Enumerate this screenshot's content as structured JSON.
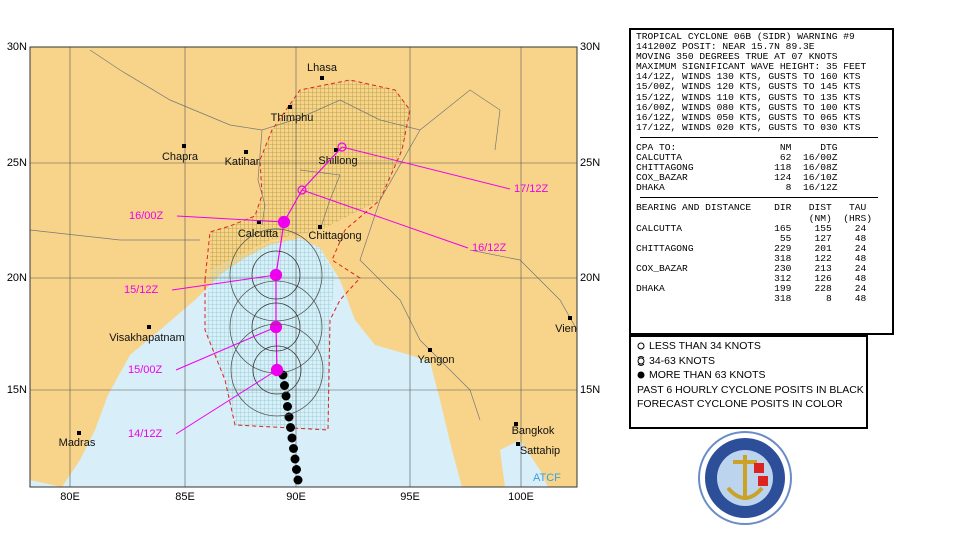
{
  "map": {
    "lat_labels": [
      "30N",
      "25N",
      "20N",
      "15N"
    ],
    "lon_labels": [
      "80E",
      "85E",
      "90E",
      "95E",
      "100E"
    ],
    "places": [
      "Lhasa",
      "Thimphu",
      "Chapra",
      "Katihar",
      "Shillong",
      "Calcutta",
      "Chittagong",
      "Visakhapatnam",
      "Yangon",
      "Madras",
      "Bangkok",
      "Sattahip",
      "Vien"
    ],
    "forecast_labels": [
      "17/12Z",
      "16/12Z",
      "16/00Z",
      "15/12Z",
      "15/00Z",
      "14/12Z"
    ],
    "credit": "ATCF"
  },
  "warning": {
    "lines": [
      "TROPICAL CYCLONE 06B (SIDR) WARNING #9",
      "141200Z POSIT: NEAR 15.7N 89.3E",
      "MOVING 350 DEGREES TRUE AT 07 KNOTS",
      "MAXIMUM SIGNIFICANT WAVE HEIGHT: 35 FEET",
      "14/12Z, WINDS 130 KTS, GUSTS TO 160 KTS",
      "15/00Z, WINDS 120 KTS, GUSTS TO 145 KTS",
      "15/12Z, WINDS 110 KTS, GUSTS TO 135 KTS",
      "16/00Z, WINDS 080 KTS, GUSTS TO 100 KTS",
      "16/12Z, WINDS 050 KTS, GUSTS TO 065 KTS",
      "17/12Z, WINDS 020 KTS, GUSTS TO 030 KTS"
    ]
  },
  "cpa": {
    "lines": [
      "CPA TO:                  NM     DTG",
      "CALCUTTA                 62  16/00Z",
      "CHITTAGONG              118  16/08Z",
      "COX_BAZAR               124  16/10Z",
      "DHAKA                     8  16/12Z"
    ]
  },
  "bearing": {
    "lines": [
      "BEARING AND DISTANCE    DIR   DIST   TAU",
      "                              (NM)  (HRS)",
      "CALCUTTA                165    155    24",
      "                         55    127    48",
      "CHITTAGONG              229    201    24",
      "                        318    122    48",
      "COX_BAZAR               230    213    24",
      "                        312    126    48",
      "DHAKA                   199    228    24",
      "                        318      8    48"
    ]
  },
  "legend": {
    "lines": [
      "LESS THAN 34 KNOTS",
      "34-63 KNOTS",
      "MORE THAN 63 KNOTS",
      "PAST 6 HOURLY CYCLONE POSITS IN BLACK",
      "FORECAST CYCLONE POSITS IN COLOR"
    ]
  }
}
